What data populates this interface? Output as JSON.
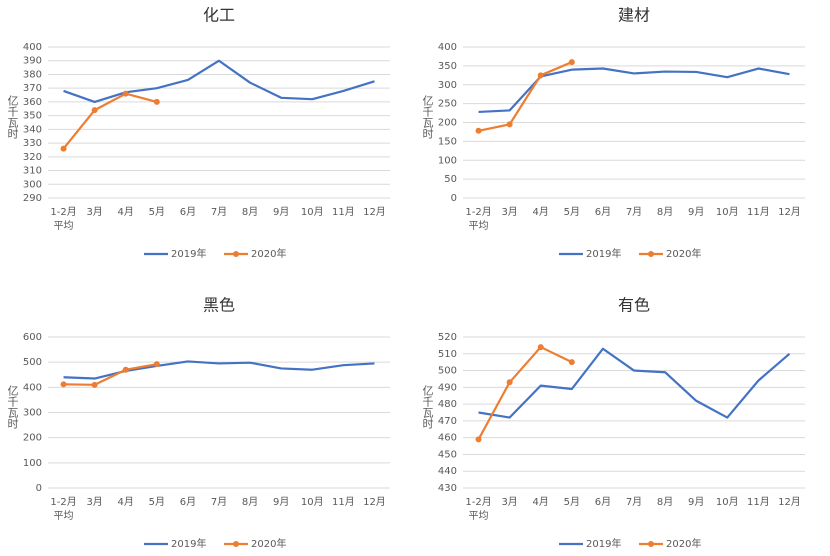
{
  "chart_data": [
    {
      "type": "line",
      "title": "化工",
      "y_label": "亿千瓦时",
      "categories": [
        "1-2月\n平均",
        "3月",
        "4月",
        "5月",
        "6月",
        "7月",
        "8月",
        "9月",
        "10月",
        "11月",
        "12月"
      ],
      "series": [
        {
          "name": "2019年",
          "color": "#4472c4",
          "markers": false,
          "values": [
            368,
            360,
            367,
            370,
            376,
            390,
            374,
            363,
            362,
            368,
            375
          ]
        },
        {
          "name": "2020年",
          "color": "#ed7d31",
          "markers": true,
          "values": [
            326,
            354,
            366,
            360,
            null,
            null,
            null,
            null,
            null,
            null,
            null
          ]
        }
      ],
      "ylim": [
        290,
        400
      ],
      "yticks": [
        290,
        300,
        310,
        320,
        330,
        340,
        350,
        360,
        370,
        380,
        390,
        400
      ],
      "grid": true
    },
    {
      "type": "line",
      "title": "建材",
      "y_label": "亿千瓦时",
      "categories": [
        "1-2月\n平均",
        "3月",
        "4月",
        "5月",
        "6月",
        "7月",
        "8月",
        "9月",
        "10月",
        "11月",
        "12月"
      ],
      "series": [
        {
          "name": "2019年",
          "color": "#4472c4",
          "markers": false,
          "values": [
            228,
            232,
            322,
            340,
            343,
            330,
            335,
            334,
            320,
            343,
            328
          ]
        },
        {
          "name": "2020年",
          "color": "#ed7d31",
          "markers": true,
          "values": [
            178,
            195,
            325,
            360,
            null,
            null,
            null,
            null,
            null,
            null,
            null
          ]
        }
      ],
      "ylim": [
        0,
        400
      ],
      "yticks": [
        0,
        50,
        100,
        150,
        200,
        250,
        300,
        350,
        400
      ],
      "grid": true
    },
    {
      "type": "line",
      "title": "黑色",
      "y_label": "亿千瓦时",
      "categories": [
        "1-2月\n平均",
        "3月",
        "4月",
        "5月",
        "6月",
        "7月",
        "8月",
        "9月",
        "10月",
        "11月",
        "12月"
      ],
      "series": [
        {
          "name": "2019年",
          "color": "#4472c4",
          "markers": false,
          "values": [
            440,
            435,
            465,
            485,
            503,
            495,
            498,
            475,
            470,
            488,
            495
          ]
        },
        {
          "name": "2020年",
          "color": "#ed7d31",
          "markers": true,
          "values": [
            412,
            410,
            470,
            492,
            null,
            null,
            null,
            null,
            null,
            null,
            null
          ]
        }
      ],
      "ylim": [
        0,
        600
      ],
      "yticks": [
        0,
        100,
        200,
        300,
        400,
        500,
        600
      ],
      "grid": true
    },
    {
      "type": "line",
      "title": "有色",
      "y_label": "亿千瓦时",
      "categories": [
        "1-2月\n平均",
        "3月",
        "4月",
        "5月",
        "6月",
        "7月",
        "8月",
        "9月",
        "10月",
        "11月",
        "12月"
      ],
      "series": [
        {
          "name": "2019年",
          "color": "#4472c4",
          "markers": false,
          "values": [
            475,
            472,
            491,
            489,
            513,
            500,
            499,
            482,
            472,
            494,
            510
          ]
        },
        {
          "name": "2020年",
          "color": "#ed7d31",
          "markers": true,
          "values": [
            459,
            493,
            514,
            505,
            null,
            null,
            null,
            null,
            null,
            null,
            null
          ]
        }
      ],
      "ylim": [
        430,
        520
      ],
      "yticks": [
        430,
        440,
        450,
        460,
        470,
        480,
        490,
        500,
        510,
        520
      ],
      "grid": true
    }
  ]
}
